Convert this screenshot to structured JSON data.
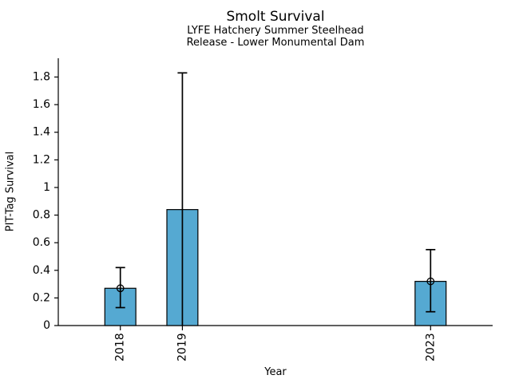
{
  "chart_data": {
    "type": "bar",
    "title": "Smolt Survival",
    "subtitle_lines": [
      "LYFE Hatchery Summer Steelhead",
      "Release - Lower Monumental Dam"
    ],
    "xlabel": "Year",
    "ylabel": "PIT-Tag Survival",
    "xlim": [
      2017,
      2024
    ],
    "ylim": [
      0,
      1.936
    ],
    "yticks": [
      0,
      0.2,
      0.4,
      0.6,
      0.8,
      1,
      1.2,
      1.4,
      1.6,
      1.8
    ],
    "ytick_labels": [
      "0",
      "0.2",
      "0.4",
      "0.6",
      "0.8",
      "1",
      "1.2",
      "1.4",
      "1.6",
      "1.8"
    ],
    "grid": false,
    "legend_position": "none",
    "bar_width_years": 0.5,
    "bar_color": "#55a9d2",
    "bar_edge_color": "#000000",
    "axis_color": "#000000",
    "categories": [
      "2018",
      "2019",
      "2023"
    ],
    "series": [
      {
        "name": "PIT-Tag Survival",
        "points": [
          {
            "year": 2018,
            "label": "2018",
            "value": 0.27,
            "err_low": 0.13,
            "err_high": 0.42,
            "marker": true,
            "cap_low": true,
            "cap_high": true
          },
          {
            "year": 2019,
            "label": "2019",
            "value": 0.84,
            "err_low": 0.0,
            "err_high": 1.83,
            "marker": false,
            "cap_low": false,
            "cap_high": true
          },
          {
            "year": 2023,
            "label": "2023",
            "value": 0.32,
            "err_low": 0.1,
            "err_high": 0.55,
            "marker": true,
            "cap_low": true,
            "cap_high": true
          }
        ]
      }
    ]
  }
}
